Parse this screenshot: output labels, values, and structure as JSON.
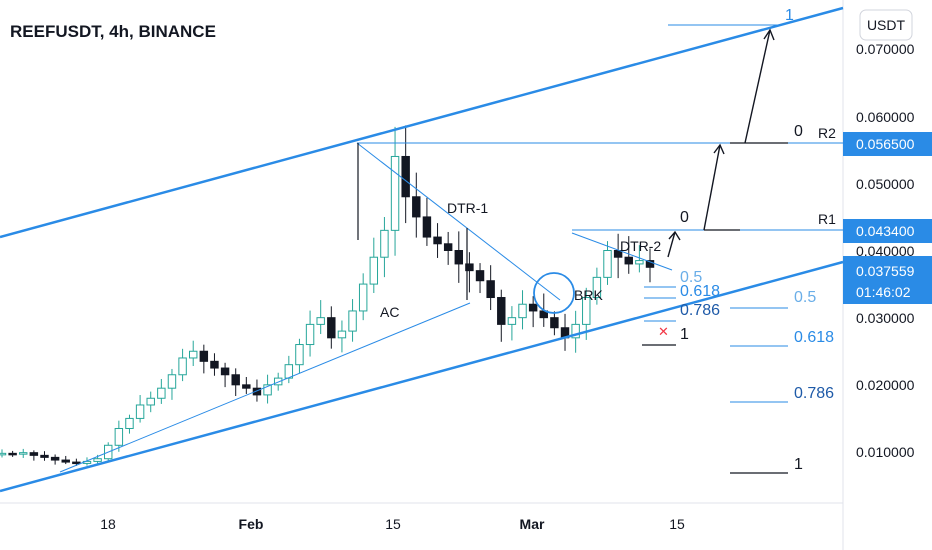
{
  "chart_data": {
    "type": "candlestick",
    "title": "REEFUSDT, 4h, BINANCE",
    "currency_label": "USDT",
    "y_ticks": [
      "0.070000",
      "0.060000",
      "0.050000",
      "0.040000",
      "0.030000",
      "0.020000",
      "0.010000"
    ],
    "y_tick_values": [
      0.07,
      0.06,
      0.05,
      0.04,
      0.03,
      0.02,
      0.01
    ],
    "ylim": [
      0.0,
      0.077
    ],
    "x_ticks": [
      "18",
      "Feb",
      "15",
      "Mar",
      "15"
    ],
    "price_badges": [
      {
        "label": "0.056500",
        "value": 0.0565,
        "color": "#2a8be6"
      },
      {
        "label": "0.043400",
        "value": 0.0434,
        "color": "#2a8be6"
      }
    ],
    "current_price": {
      "label": "0.037559",
      "value": 0.037559,
      "countdown": "01:46:02",
      "color": "#2a8be6"
    },
    "candles_close_approx": [
      0.0098,
      0.0097,
      0.0099,
      0.0095,
      0.0092,
      0.0088,
      0.0085,
      0.0083,
      0.0086,
      0.009,
      0.011,
      0.0135,
      0.015,
      0.017,
      0.018,
      0.0195,
      0.0215,
      0.024,
      0.025,
      0.0235,
      0.0225,
      0.0215,
      0.02,
      0.0195,
      0.0185,
      0.02,
      0.021,
      0.023,
      0.026,
      0.029,
      0.03,
      0.027,
      0.028,
      0.031,
      0.035,
      0.039,
      0.043,
      0.054,
      0.048,
      0.045,
      0.042,
      0.041,
      0.04,
      0.038,
      0.037,
      0.0355,
      0.033,
      0.029,
      0.03,
      0.032,
      0.031,
      0.03,
      0.0285,
      0.027,
      0.029,
      0.033,
      0.036,
      0.04,
      0.039,
      0.038,
      0.0385,
      0.0375
    ],
    "annotations": {
      "AC": "AC",
      "DTR1": "DTR-1",
      "DTR2": "DTR-2",
      "BRK": "BRK",
      "R1": "R1",
      "R2": "R2",
      "zero_r1": "0",
      "zero_r2": "0",
      "one_top": "1"
    },
    "fib_small": {
      "levels": [
        "0.5",
        "0.618",
        "0.786",
        "1"
      ],
      "color": "#2a8be6"
    },
    "fib_large": {
      "levels": [
        "0.5",
        "0.618",
        "0.786",
        "1"
      ]
    },
    "colors": {
      "up": "#26a69a",
      "down": "#131722",
      "line": "#2a8be6",
      "text": "#131722",
      "fib_dark": "#1e5aa8"
    }
  }
}
